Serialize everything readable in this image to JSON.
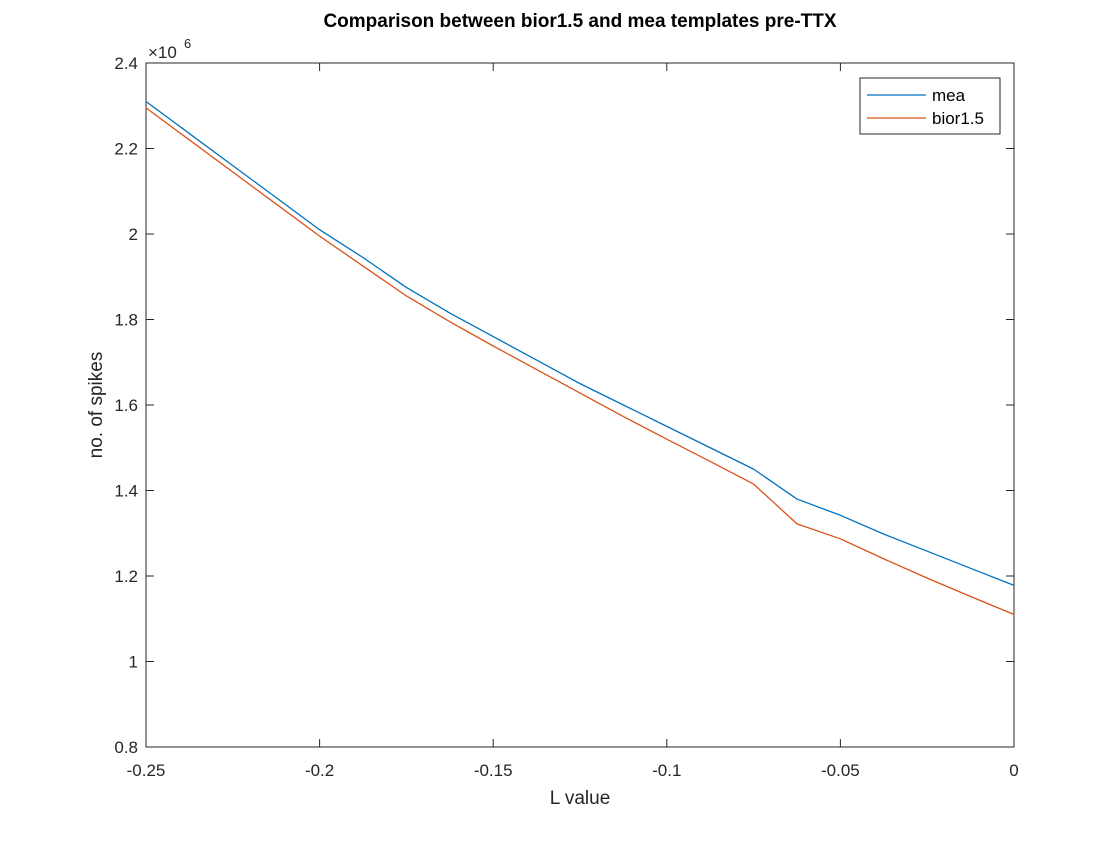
{
  "chart_data": {
    "type": "line",
    "title": "Comparison between bior1.5 and mea templates pre-TTX",
    "xlabel": "L value",
    "ylabel": "no. of spikes",
    "y_exponent_label": "×10",
    "y_exponent_value": "6",
    "xlim": [
      -0.25,
      0
    ],
    "ylim": [
      0.8,
      2.4
    ],
    "y_scale_factor": 1000000,
    "x_ticks": [
      -0.25,
      -0.2,
      -0.15,
      -0.1,
      -0.05,
      0
    ],
    "x_tick_labels": [
      "-0.25",
      "-0.2",
      "-0.15",
      "-0.1",
      "-0.05",
      "0"
    ],
    "y_ticks": [
      0.8,
      1,
      1.2,
      1.4,
      1.6,
      1.8,
      2,
      2.2,
      2.4
    ],
    "y_tick_labels": [
      "0.8",
      "1",
      "1.2",
      "1.4",
      "1.6",
      "1.8",
      "2",
      "2.2",
      "2.4"
    ],
    "grid": false,
    "legend_position": "top-right",
    "x": [
      -0.25,
      -0.2375,
      -0.225,
      -0.2125,
      -0.2,
      -0.1875,
      -0.175,
      -0.1625,
      -0.15,
      -0.1375,
      -0.125,
      -0.1125,
      -0.1,
      -0.0875,
      -0.075,
      -0.0625,
      -0.05,
      -0.0375,
      -0.025,
      -0.0125,
      0
    ],
    "series": [
      {
        "name": "mea",
        "color": "#0072BD",
        "values": [
          2.31,
          2.235,
          2.16,
          2.085,
          2.01,
          1.945,
          1.875,
          1.815,
          1.76,
          1.705,
          1.65,
          1.6,
          1.55,
          1.5,
          1.45,
          1.38,
          1.342,
          1.298,
          1.258,
          1.218,
          1.178
        ]
      },
      {
        "name": "bior1.5",
        "color": "#D95319",
        "values": [
          2.295,
          2.22,
          2.145,
          2.07,
          1.995,
          1.925,
          1.855,
          1.795,
          1.738,
          1.683,
          1.628,
          1.573,
          1.52,
          1.468,
          1.415,
          1.322,
          1.287,
          1.24,
          1.195,
          1.152,
          1.11
        ]
      }
    ]
  }
}
